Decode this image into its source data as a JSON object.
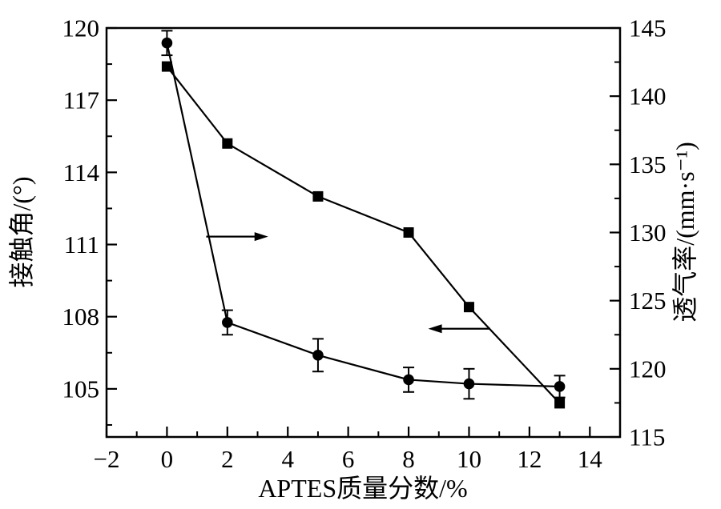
{
  "figure": {
    "background": "#ffffff",
    "foreground": "#000000"
  },
  "chart_data": {
    "type": "line",
    "title": "",
    "xlabel": "APTES质量分数/%",
    "ylabel_left": "接触角/(°)",
    "ylabel_right": "透气率/(mm·s⁻¹)",
    "grid": false,
    "legend": "none",
    "x_axis": {
      "min": -2,
      "max": 15,
      "major_ticks": [
        -2,
        0,
        2,
        4,
        6,
        8,
        10,
        12,
        14
      ],
      "tick_labels": [
        "−2",
        "0",
        "2",
        "4",
        "6",
        "8",
        "10",
        "12",
        "14"
      ],
      "minor_ticks": [
        -1,
        1,
        3,
        5,
        7,
        9,
        11,
        13
      ]
    },
    "left_axis": {
      "min": 103,
      "max": 120,
      "major_ticks": [
        105,
        108,
        111,
        114,
        117,
        120
      ],
      "tick_labels": [
        "105",
        "108",
        "111",
        "114",
        "117",
        "120"
      ],
      "minor_ticks": [
        103.5,
        106.5,
        109.5,
        112.5,
        115.5,
        118.5
      ]
    },
    "right_axis": {
      "min": 115,
      "max": 145,
      "major_ticks": [
        115,
        120,
        125,
        130,
        135,
        140,
        145
      ],
      "tick_labels": [
        "115",
        "120",
        "125",
        "130",
        "135",
        "140",
        "145"
      ],
      "minor_ticks": [
        117.5,
        122.5,
        127.5,
        132.5,
        137.5,
        142.5
      ]
    },
    "x": [
      0,
      2,
      5,
      8,
      10,
      13
    ],
    "series": [
      {
        "name": "接触角",
        "axis": "left",
        "marker": "square",
        "values": [
          118.4,
          115.2,
          113.0,
          111.5,
          108.4,
          104.4
        ]
      },
      {
        "name": "透气率",
        "axis": "right",
        "marker": "circle",
        "values": [
          143.9,
          123.4,
          121.0,
          119.2,
          118.9,
          118.7
        ],
        "error_bars": [
          0.9,
          0.9,
          1.2,
          0.9,
          1.1,
          0.8
        ]
      }
    ],
    "annotations": [
      {
        "type": "arrow",
        "axis": "right",
        "from": {
          "x": 1.3,
          "y": 129.7
        },
        "to": {
          "x": 3.35,
          "y": 129.7
        }
      },
      {
        "type": "arrow",
        "axis": "left",
        "from": {
          "x": 10.7,
          "y": 107.5
        },
        "to": {
          "x": 8.65,
          "y": 107.5
        }
      }
    ]
  }
}
